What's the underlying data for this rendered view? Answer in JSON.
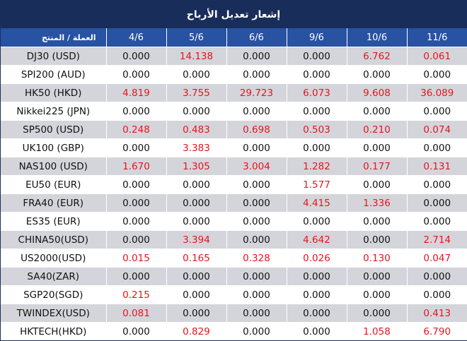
{
  "title": "إشعار تعديل الأرباح",
  "header": {
    "product_label": "العملة / المنتج",
    "dates": [
      "4/6",
      "5/6",
      "6/6",
      "9/6",
      "10/6",
      "11/6"
    ]
  },
  "rows": [
    {
      "product": "DJ30 (USD)",
      "values": [
        "0.000",
        "14.138",
        "0.000",
        "0.000",
        "6.762",
        "0.061"
      ]
    },
    {
      "product": "SPI200 (AUD)",
      "values": [
        "0.000",
        "0.000",
        "0.000",
        "0.000",
        "0.000",
        "0.000"
      ]
    },
    {
      "product": "HK50 (HKD)",
      "values": [
        "4.819",
        "3.755",
        "29.723",
        "6.073",
        "9.608",
        "36.089"
      ]
    },
    {
      "product": "Nikkei225 (JPN)",
      "values": [
        "0.000",
        "0.000",
        "0.000",
        "0.000",
        "0.000",
        "0.000"
      ]
    },
    {
      "product": "SP500 (USD)",
      "values": [
        "0.248",
        "0.483",
        "0.698",
        "0.503",
        "0.210",
        "0.074"
      ]
    },
    {
      "product": "UK100 (GBP)",
      "values": [
        "0.000",
        "3.383",
        "0.000",
        "0.000",
        "0.000",
        "0.000"
      ]
    },
    {
      "product": "NAS100 (USD)",
      "values": [
        "1.670",
        "1.305",
        "3.004",
        "1.282",
        "0.177",
        "0.131"
      ]
    },
    {
      "product": "EU50 (EUR)",
      "values": [
        "0.000",
        "0.000",
        "0.000",
        "1.577",
        "0.000",
        "0.000"
      ]
    },
    {
      "product": "FRA40 (EUR)",
      "values": [
        "0.000",
        "0.000",
        "0.000",
        "4.415",
        "1.336",
        "0.000"
      ]
    },
    {
      "product": "ES35 (EUR)",
      "values": [
        "0.000",
        "0.000",
        "0.000",
        "0.000",
        "0.000",
        "0.000"
      ]
    },
    {
      "product": "CHINA50(USD)",
      "values": [
        "0.000",
        "3.394",
        "0.000",
        "4.642",
        "0.000",
        "2.714"
      ]
    },
    {
      "product": "US2000(USD)",
      "values": [
        "0.015",
        "0.165",
        "0.328",
        "0.026",
        "0.130",
        "0.047"
      ]
    },
    {
      "product": "SA40(ZAR)",
      "values": [
        "0.000",
        "0.000",
        "0.000",
        "0.000",
        "0.000",
        "0.000"
      ]
    },
    {
      "product": "SGP20(SGD)",
      "values": [
        "0.215",
        "0.000",
        "0.000",
        "0.000",
        "0.000",
        "0.000"
      ]
    },
    {
      "product": "TWINDEX(USD)",
      "values": [
        "0.081",
        "0.000",
        "0.000",
        "0.000",
        "0.000",
        "0.413"
      ]
    },
    {
      "product": "HKTECH(HKD)",
      "values": [
        "0.000",
        "0.829",
        "0.000",
        "0.000",
        "1.058",
        "6.790"
      ]
    }
  ],
  "colors": {
    "title_bg": "#192d5a",
    "header_bg": "#2852a2",
    "alt_row_bg": "#d4d5da",
    "positive_value": "#e8141e",
    "zero_value": "#111111"
  }
}
